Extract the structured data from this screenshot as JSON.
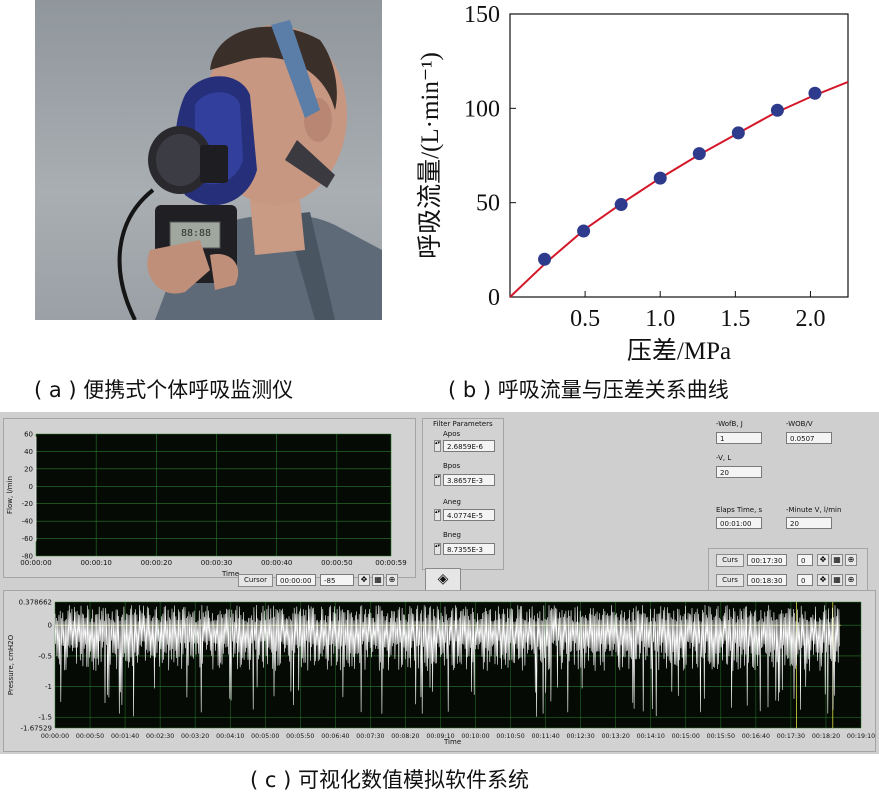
{
  "panel_a": {
    "caption": "( a ) 便携式个体呼吸监测仪",
    "device_screen": "88:88"
  },
  "panel_b": {
    "caption": "( b ) 呼吸流量与压差关系曲线"
  },
  "chart_data": {
    "type": "scatter",
    "xlabel": "压差/MPa",
    "ylabel": "呼吸流量/(L·min⁻¹)",
    "xlim": [
      0,
      2.25
    ],
    "ylim": [
      0,
      150
    ],
    "x_ticks": [
      "0.5",
      "1.0",
      "1.5",
      "2.0"
    ],
    "y_ticks": [
      "0",
      "50",
      "100",
      "150"
    ],
    "points": {
      "x": [
        0.23,
        0.49,
        0.74,
        1.0,
        1.26,
        1.52,
        1.78,
        2.03
      ],
      "y": [
        20,
        35,
        49,
        63,
        76,
        87,
        99,
        108
      ]
    },
    "fit_curve": {
      "x": [
        0,
        0.25,
        0.5,
        0.75,
        1.0,
        1.25,
        1.5,
        1.75,
        2.0,
        2.25
      ],
      "y": [
        0,
        19,
        36,
        50,
        63,
        75,
        86,
        97,
        106,
        114
      ]
    },
    "point_color": "#2e3a8c",
    "line_color": "#d4182a"
  },
  "panel_c": {
    "caption": "( c ) 可视化数值模拟软件系统",
    "flow_chart": {
      "ylabel": "Flow, l/min",
      "xlabel": "Time",
      "y_ticks": [
        "60",
        "40",
        "20",
        "0",
        "-20",
        "-40",
        "-60",
        "-80"
      ],
      "x_ticks": [
        "00:00:00",
        "00:00:10",
        "00:00:20",
        "00:00:30",
        "00:00:40",
        "00:00:50",
        "00:00:59"
      ],
      "cursor_label": "Cursor",
      "cursor_time": "00:00:00",
      "cursor_value": "-85"
    },
    "filter": {
      "title": "Filter Parameters",
      "apos_label": "Apos",
      "apos": "2.6859E-6",
      "bpos_label": "Bpos",
      "bpos": "3.8657E-3",
      "aneg_label": "Aneg",
      "aneg": "4.0774E-5",
      "bneg_label": "Bneg",
      "bneg": "8.7355E-3"
    },
    "stats": {
      "wofb_label": "-WofB, J",
      "wofb": "1",
      "wob_label": "-WOB/V",
      "wob": "0.0507",
      "v_label": "-V, L",
      "v": "20",
      "elaps_label": "Elaps Time, s",
      "elaps": "00:01:00",
      "minute_label": "-Minute V, l/min",
      "minute": "20"
    },
    "cursors": {
      "label1": "Curs",
      "time1": "00:17:30",
      "val1": "0",
      "label2": "Curs",
      "time2": "00:18:30",
      "val2": "0"
    },
    "pressure_chart": {
      "ylabel": "Pressure, cmH2O",
      "xlabel": "Time",
      "y_ticks": [
        "0.378662",
        "0",
        "-0.5",
        "-1",
        "-1.5",
        "-1.67529"
      ],
      "x_ticks": [
        "00:00:00",
        "00:00:50",
        "00:01:40",
        "00:02:30",
        "00:03:20",
        "00:04:10",
        "00:05:00",
        "00:05:50",
        "00:06:40",
        "00:07:30",
        "00:08:20",
        "00:09:10",
        "00:10:00",
        "00:10:50",
        "00:11:40",
        "00:12:30",
        "00:13:20",
        "00:14:10",
        "00:15:00",
        "00:15:50",
        "00:16:40",
        "00:17:30",
        "00:18:20",
        "00:19:10"
      ]
    }
  },
  "colors": {
    "plot_bg": "#050a05",
    "grid": "#2a7a2a",
    "trace": "#ffffff",
    "ref_line": "#d8d840"
  }
}
